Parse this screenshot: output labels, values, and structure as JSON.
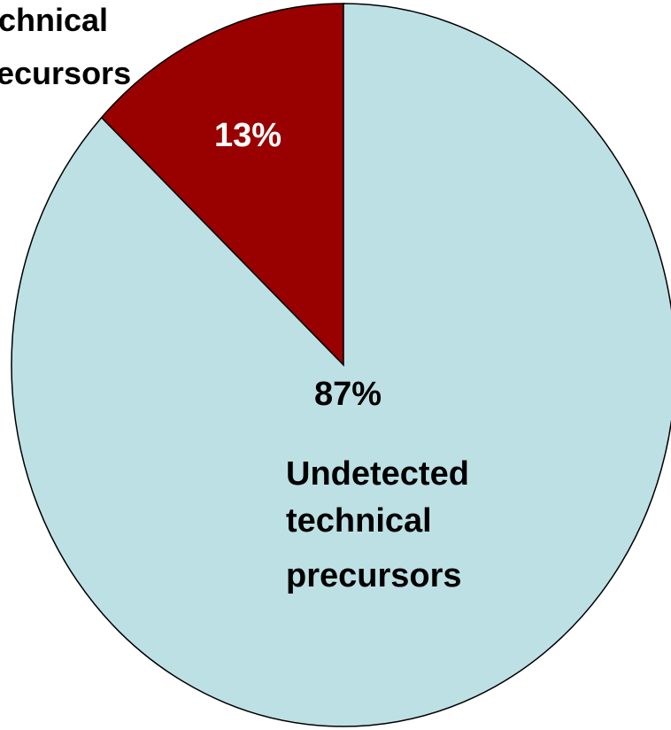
{
  "chart_data": {
    "type": "pie",
    "categories": [
      "chnical ecursors",
      "Undetected technical precursors"
    ],
    "values": [
      13,
      87
    ],
    "value_labels": [
      "13%",
      "87%"
    ],
    "colors": [
      "#990000",
      "#bde0e4"
    ]
  }
}
